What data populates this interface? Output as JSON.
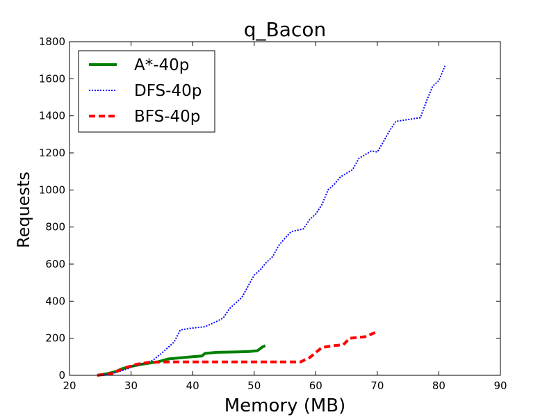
{
  "chart_data": {
    "type": "line",
    "title": "q_Bacon",
    "xlabel": "Memory (MB)",
    "ylabel": "Requests",
    "xlim": [
      20,
      90
    ],
    "ylim": [
      0,
      1800
    ],
    "xticks": [
      20,
      30,
      40,
      50,
      60,
      70,
      80,
      90
    ],
    "yticks": [
      0,
      200,
      400,
      600,
      800,
      1000,
      1200,
      1400,
      1600,
      1800
    ],
    "grid": false,
    "legend_position": "top-left",
    "series": [
      {
        "name": "A*-40p",
        "color": "#008000",
        "style": "solid",
        "points": [
          [
            24.5,
            0
          ],
          [
            26,
            8
          ],
          [
            27.5,
            20
          ],
          [
            28.5,
            35
          ],
          [
            30,
            48
          ],
          [
            31.5,
            58
          ],
          [
            33,
            66
          ],
          [
            34.5,
            74
          ],
          [
            36,
            88
          ],
          [
            38,
            94
          ],
          [
            40,
            100
          ],
          [
            41.5,
            104
          ],
          [
            42,
            118
          ],
          [
            44,
            124
          ],
          [
            47,
            126
          ],
          [
            49,
            128
          ],
          [
            50.5,
            132
          ],
          [
            51.3,
            152
          ],
          [
            51.8,
            160
          ]
        ]
      },
      {
        "name": "DFS-40p",
        "color": "#0000ff",
        "style": "dotted",
        "points": [
          [
            25.5,
            0
          ],
          [
            27,
            10
          ],
          [
            29,
            30
          ],
          [
            30.5,
            50
          ],
          [
            32,
            65
          ],
          [
            33.5,
            80
          ],
          [
            35,
            120
          ],
          [
            36,
            150
          ],
          [
            37,
            180
          ],
          [
            38,
            245
          ],
          [
            40,
            255
          ],
          [
            42,
            262
          ],
          [
            44,
            292
          ],
          [
            45,
            310
          ],
          [
            46,
            360
          ],
          [
            47,
            390
          ],
          [
            48,
            420
          ],
          [
            49,
            480
          ],
          [
            50,
            540
          ],
          [
            51,
            570
          ],
          [
            52,
            610
          ],
          [
            53,
            640
          ],
          [
            54,
            700
          ],
          [
            55,
            740
          ],
          [
            56,
            775
          ],
          [
            58,
            790
          ],
          [
            59,
            840
          ],
          [
            60,
            870
          ],
          [
            61,
            920
          ],
          [
            62,
            1000
          ],
          [
            63,
            1030
          ],
          [
            64,
            1070
          ],
          [
            65,
            1090
          ],
          [
            66,
            1110
          ],
          [
            67,
            1170
          ],
          [
            68,
            1190
          ],
          [
            69,
            1210
          ],
          [
            70,
            1205
          ],
          [
            71,
            1260
          ],
          [
            72,
            1320
          ],
          [
            73,
            1370
          ],
          [
            75,
            1380
          ],
          [
            77,
            1390
          ],
          [
            78,
            1480
          ],
          [
            79,
            1560
          ],
          [
            80,
            1590
          ],
          [
            81,
            1670
          ]
        ]
      },
      {
        "name": "BFS-40p",
        "color": "#ff0000",
        "style": "dashed",
        "points": [
          [
            24.5,
            0
          ],
          [
            27,
            10
          ],
          [
            28,
            25
          ],
          [
            29,
            40
          ],
          [
            30,
            50
          ],
          [
            31,
            60
          ],
          [
            33,
            70
          ],
          [
            36,
            72
          ],
          [
            45,
            72
          ],
          [
            57.5,
            72
          ],
          [
            59,
            95
          ],
          [
            61,
            150
          ],
          [
            63,
            160
          ],
          [
            64.5,
            165
          ],
          [
            65.5,
            200
          ],
          [
            68,
            208
          ],
          [
            70,
            235
          ]
        ]
      }
    ]
  }
}
